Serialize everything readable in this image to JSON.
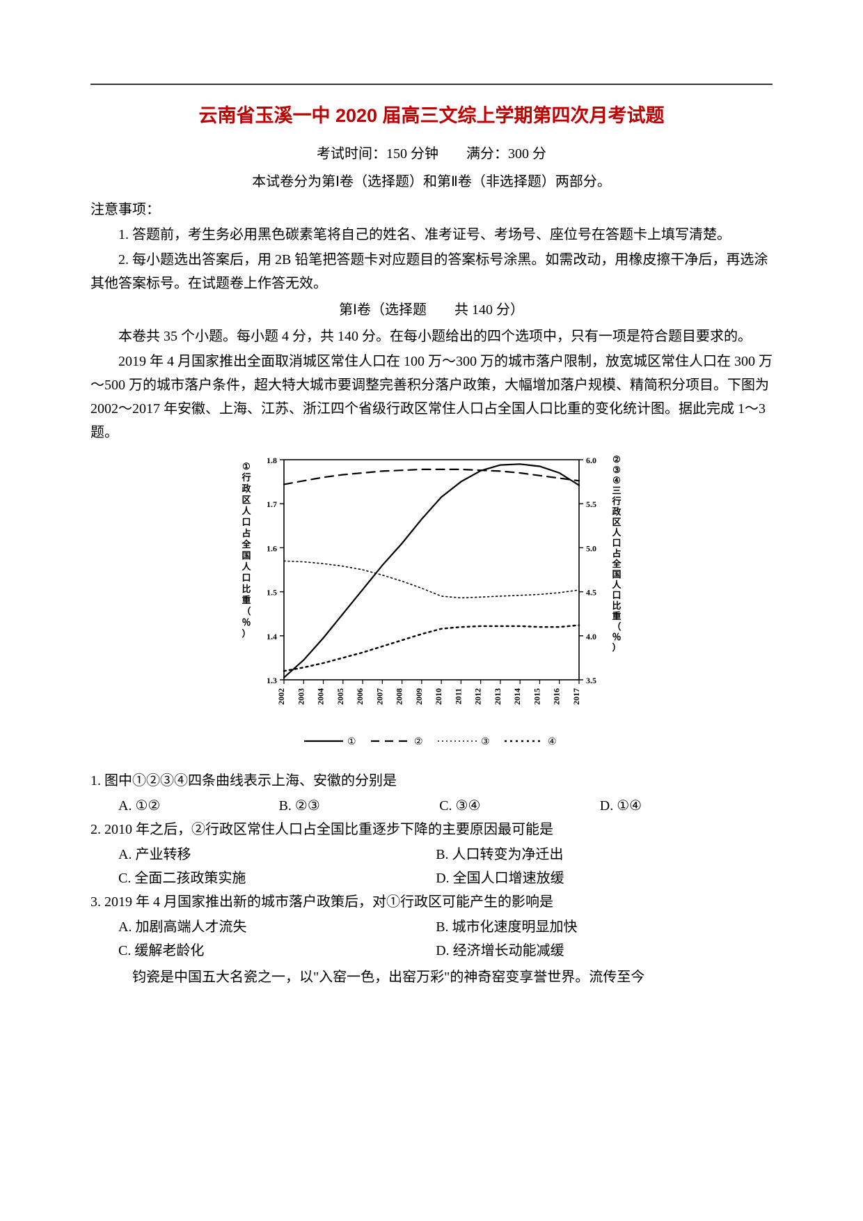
{
  "header": {
    "title": "云南省玉溪一中 2020 届高三文综上学期第四次月考试题",
    "time_line": "考试时间：150 分钟　　满分：300 分",
    "parts_line": "本试卷分为第Ⅰ卷（选择题）和第Ⅱ卷（非选择题）两部分。"
  },
  "notes": {
    "heading": "注意事项：",
    "n1": "1. 答题前，考生务必用黑色碳素笔将自己的姓名、准考证号、考场号、座位号在答题卡上填写清楚。",
    "n2": "2. 每小题选出答案后，用 2B 铅笔把答题卡对应题目的答案标号涂黑。如需改动，用橡皮擦干净后，再选涂其他答案标号。在试题卷上作答无效。"
  },
  "section1": {
    "title": "第Ⅰ卷（选择题　　共 140 分）",
    "intro": "本卷共 35 个小题。每小题 4 分，共 140 分。在每小题给出的四个选项中，只有一项是符合题目要求的。"
  },
  "passage": {
    "p1": "2019 年 4 月国家推出全面取消城区常住人口在 100 万～300 万的城市落户限制，放宽城区常住人口在 300 万～500 万的城市落户条件，超大特大城市要调整完善积分落户政策，大幅增加落户规模、精简积分项目。下图为 2002～2017 年安徽、上海、江苏、浙江四个省级行政区常住人口占全国人口比重的变化统计图。据此完成 1～3 题。"
  },
  "chart": {
    "type": "line",
    "background_color": "#ffffff",
    "axis_color": "#000000",
    "grid": false,
    "font_family": "SimSun",
    "tick_fontsize": 12,
    "axis_label_fontsize": 13,
    "left_axis": {
      "label_vertical": "①行政区人口占全国人口比重（％）",
      "min": 1.3,
      "max": 1.8,
      "step": 0.1,
      "ticks": [
        "1.3",
        "1.4",
        "1.5",
        "1.6",
        "1.7",
        "1.8"
      ]
    },
    "right_axis": {
      "label_vertical": "②③④三行政区人口占全国人口比重（％）",
      "min": 3.5,
      "max": 6.0,
      "step": 0.5,
      "ticks": [
        "3.5",
        "4.0",
        "4.5",
        "5.0",
        "5.5",
        "6.0"
      ]
    },
    "x_axis": {
      "years": [
        "2002",
        "2003",
        "2004",
        "2005",
        "2006",
        "2007",
        "2008",
        "2009",
        "2010",
        "2011",
        "2012",
        "2013",
        "2014",
        "2015",
        "2016",
        "2017"
      ],
      "rotated": true
    },
    "series": [
      {
        "id": "①",
        "axis": "left",
        "style": "solid",
        "color": "#000000",
        "width": 2.2,
        "values": [
          1.305,
          1.345,
          1.395,
          1.45,
          1.505,
          1.56,
          1.61,
          1.665,
          1.715,
          1.75,
          1.775,
          1.788,
          1.79,
          1.785,
          1.77,
          1.742
        ]
      },
      {
        "id": "②",
        "axis": "right",
        "style": "dash",
        "color": "#000000",
        "width": 2.2,
        "values": [
          5.72,
          5.76,
          5.8,
          5.83,
          5.85,
          5.87,
          5.88,
          5.89,
          5.89,
          5.89,
          5.88,
          5.87,
          5.85,
          5.82,
          5.79,
          5.76
        ]
      },
      {
        "id": "③",
        "axis": "right",
        "style": "fine-dots",
        "color": "#000000",
        "width": 1.6,
        "values": [
          4.85,
          4.84,
          4.82,
          4.79,
          4.75,
          4.69,
          4.62,
          4.54,
          4.45,
          4.43,
          4.44,
          4.45,
          4.46,
          4.47,
          4.49,
          4.52
        ]
      },
      {
        "id": "④",
        "axis": "right",
        "style": "heavy-dots",
        "color": "#000000",
        "width": 2.4,
        "values": [
          3.6,
          3.64,
          3.69,
          3.75,
          3.81,
          3.88,
          3.95,
          4.02,
          4.08,
          4.1,
          4.11,
          4.11,
          4.11,
          4.1,
          4.1,
          4.12
        ]
      }
    ],
    "legend": {
      "items": [
        "①",
        "②",
        "③",
        "④"
      ],
      "position": "bottom"
    }
  },
  "q1": {
    "stem": "1. 图中①②③④四条曲线表示上海、安徽的分别是",
    "A": "A. ①②",
    "B": "B. ②③",
    "C": "C. ③④",
    "D": "D. ①④"
  },
  "q2": {
    "stem": "2. 2010 年之后，②行政区常住人口占全国比重逐步下降的主要原因最可能是",
    "A": "A. 产业转移",
    "B": "B. 人口转变为净迁出",
    "C": "C. 全面二孩政策实施",
    "D": "D. 全国人口增速放缓"
  },
  "q3": {
    "stem": "3. 2019 年 4 月国家推出新的城市落户政策后，对①行政区可能产生的影响是",
    "A": "A. 加剧高端人才流失",
    "B": "B. 城市化速度明显加快",
    "C": "C. 缓解老龄化",
    "D": "D. 经济增长动能减缓"
  },
  "footer_passage": {
    "p1": "钧瓷是中国五大名瓷之一，以\"入窑一色，出窑万彩\"的神奇窑变享誉世界。流传至今"
  }
}
